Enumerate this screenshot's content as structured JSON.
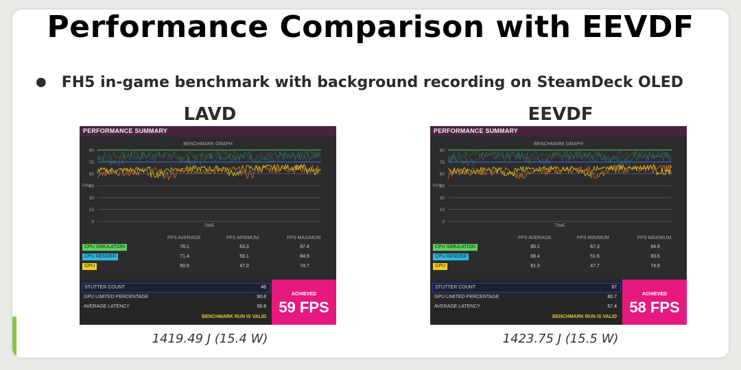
{
  "slide": {
    "title": "Performance Comparison with EEVDF",
    "bullet": "FH5 in-game benchmark with background recording on SteamDeck OLED"
  },
  "colors": {
    "panel_bg": "#2c2c2e",
    "header_bg": "#4a2340",
    "achieved_bg": "#e6197f",
    "cpu_sim": "#5cd15c",
    "cpu_render": "#2fb8e0",
    "gpu": "#f2d21e",
    "line_green": "#5cc85c",
    "line_blue": "#3f7be0"
  },
  "panels": [
    {
      "scheduler": "LAVD",
      "energy": "1419.49 J (15.4 W)",
      "header": "PERFORMANCE SUMMARY",
      "graph_title": "BENCHMARK GRAPH",
      "y_axis_label": "FPS",
      "x_axis_label": "TIME",
      "y_ticks": [
        "90",
        "75",
        "60",
        "45",
        "30",
        "15",
        "0"
      ],
      "columns": [
        "FPS AVERAGE",
        "FPS MINIMUM",
        "FPS MAXIMUM"
      ],
      "rows": [
        {
          "label": "CPU SIMULATION",
          "values": [
            "78.1",
            "63.3",
            "87.4"
          ]
        },
        {
          "label": "CPU RENDER",
          "values": [
            "71.4",
            "56.1",
            "84.9"
          ]
        },
        {
          "label": "GPU",
          "values": [
            "60.9",
            "47.3",
            "74.7"
          ]
        }
      ],
      "stutter_label": "STUTTER COUNT",
      "stutter_value": "46",
      "gpu_limited_label": "GPU LIMITED PERCENTAGE",
      "gpu_limited_value": "90.8",
      "latency_label": "AVERAGE LATENCY",
      "latency_value": "56.8",
      "valid_text": "BENCHMARK RUN IS VALID",
      "achieved_label": "ACHIEVED",
      "achieved_fps": "59 FPS"
    },
    {
      "scheduler": "EEVDF",
      "energy": "1423.75 J (15.5 W)",
      "header": "PERFORMANCE SUMMARY",
      "graph_title": "BENCHMARK GRAPH",
      "y_axis_label": "FPS",
      "x_axis_label": "TIME",
      "y_ticks": [
        "90",
        "75",
        "60",
        "45",
        "30",
        "15",
        "0"
      ],
      "columns": [
        "FPS AVERAGE",
        "FPS MINIMUM",
        "FPS MAXIMUM"
      ],
      "rows": [
        {
          "label": "CPU SIMULATION",
          "values": [
            "85.1",
            "67.3",
            "94.9"
          ]
        },
        {
          "label": "CPU RENDER",
          "values": [
            "68.4",
            "51.6",
            "83.6"
          ]
        },
        {
          "label": "GPU",
          "values": [
            "61.3",
            "47.7",
            "74.9"
          ]
        }
      ],
      "stutter_label": "STUTTER COUNT",
      "stutter_value": "87",
      "gpu_limited_label": "GPU LIMITED PERCENTAGE",
      "gpu_limited_value": "80.7",
      "latency_label": "AVERAGE LATENCY",
      "latency_value": "57.4",
      "valid_text": "BENCHMARK RUN IS VALID",
      "achieved_label": "ACHIEVED",
      "achieved_fps": "58 FPS"
    }
  ]
}
